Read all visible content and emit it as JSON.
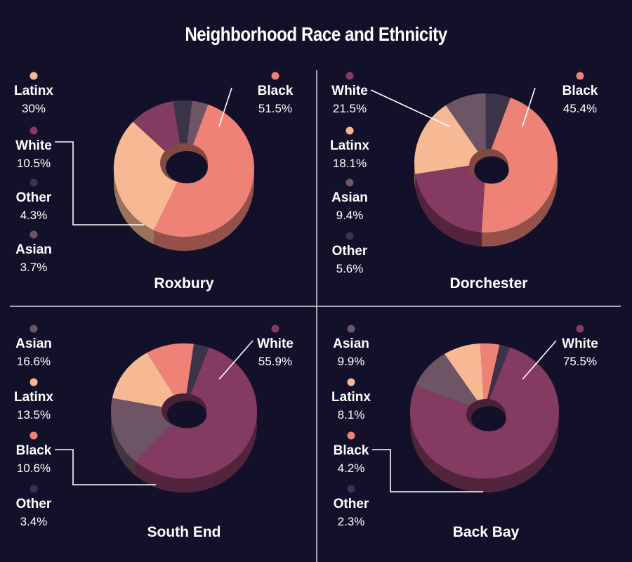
{
  "title": "Neighborhood Race and Ethnicity",
  "colors": {
    "background": "#13112a",
    "Black": "#ee8277",
    "Latinx": "#f6b993",
    "White": "#843b61",
    "Asian": "#6e5566",
    "Other": "#3b3448"
  },
  "chart_data": [
    {
      "type": "pie",
      "title": "Roxbury",
      "slices": [
        {
          "label": "Black",
          "value": 51.5,
          "text": "51.5%"
        },
        {
          "label": "Latinx",
          "value": 30,
          "text": "30%"
        },
        {
          "label": "White",
          "value": 10.5,
          "text": "10.5%"
        },
        {
          "label": "Other",
          "value": 4.3,
          "text": "4.3%"
        },
        {
          "label": "Asian",
          "value": 3.7,
          "text": "3.7%"
        }
      ],
      "legend_order": [
        "Latinx",
        "White",
        "Other",
        "Asian"
      ]
    },
    {
      "type": "pie",
      "title": "Dorchester",
      "slices": [
        {
          "label": "Black",
          "value": 45.4,
          "text": "45.4%"
        },
        {
          "label": "White",
          "value": 21.5,
          "text": "21.5%"
        },
        {
          "label": "Latinx",
          "value": 18.1,
          "text": "18.1%"
        },
        {
          "label": "Asian",
          "value": 9.4,
          "text": "9.4%"
        },
        {
          "label": "Other",
          "value": 5.6,
          "text": "5.6%"
        }
      ],
      "legend_order": [
        "White",
        "Latinx",
        "Asian",
        "Other"
      ]
    },
    {
      "type": "pie",
      "title": "South End",
      "slices": [
        {
          "label": "White",
          "value": 55.9,
          "text": "55.9%"
        },
        {
          "label": "Asian",
          "value": 16.6,
          "text": "16.6%"
        },
        {
          "label": "Latinx",
          "value": 13.5,
          "text": "13.5%"
        },
        {
          "label": "Black",
          "value": 10.6,
          "text": "10.6%"
        },
        {
          "label": "Other",
          "value": 3.4,
          "text": "3.4%"
        }
      ],
      "legend_order": [
        "Asian",
        "Latinx",
        "Black",
        "Other"
      ]
    },
    {
      "type": "pie",
      "title": "Back Bay",
      "slices": [
        {
          "label": "White",
          "value": 75.5,
          "text": "75.5%"
        },
        {
          "label": "Asian",
          "value": 9.9,
          "text": "9.9%"
        },
        {
          "label": "Latinx",
          "value": 8.1,
          "text": "8.1%"
        },
        {
          "label": "Black",
          "value": 4.2,
          "text": "4.2%"
        },
        {
          "label": "Other",
          "value": 2.3,
          "text": "2.3%"
        }
      ],
      "legend_order": [
        "Asian",
        "Latinx",
        "Black",
        "Other"
      ]
    }
  ]
}
